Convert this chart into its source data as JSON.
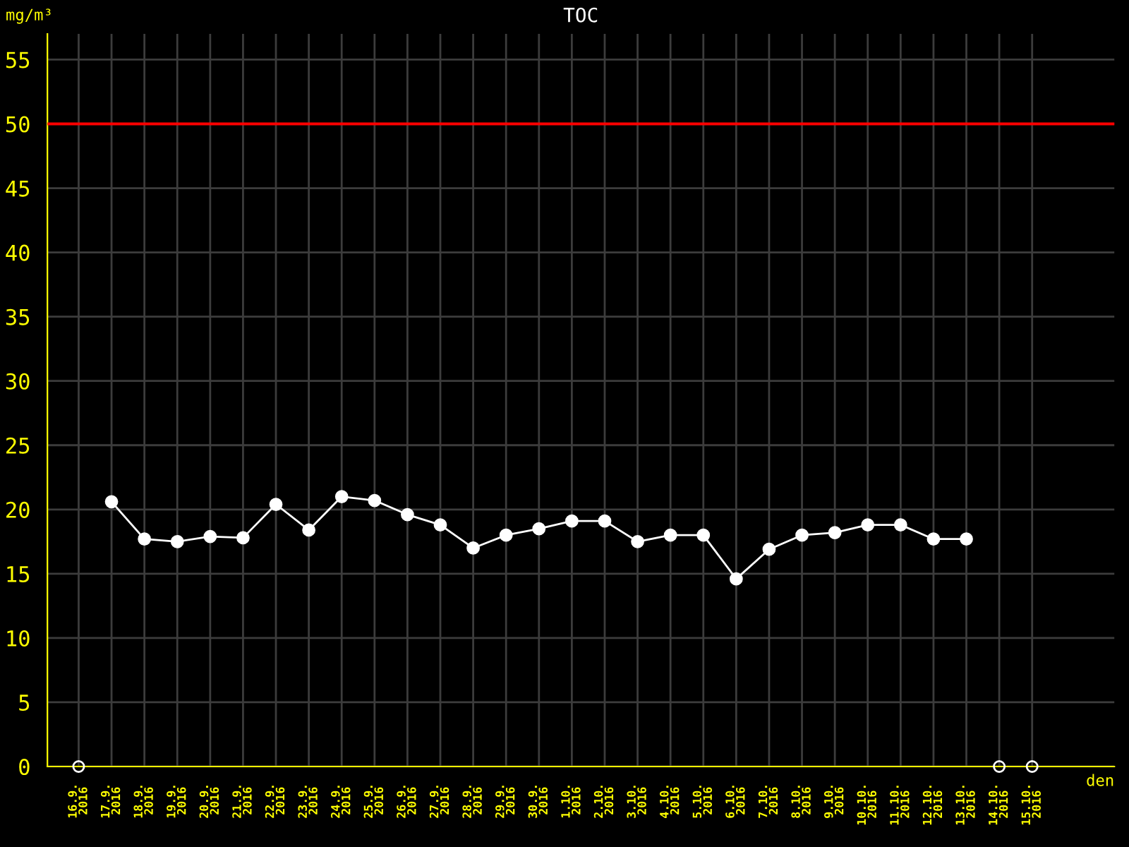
{
  "chart_data": {
    "type": "line",
    "title": "TOC",
    "xlabel": "den",
    "ylabel": "mg/m³",
    "categories": [
      "16.9.\n2016",
      "17.9.\n2016",
      "18.9.\n2016",
      "19.9.\n2016",
      "20.9.\n2016",
      "21.9.\n2016",
      "22.9.\n2016",
      "23.9.\n2016",
      "24.9.\n2016",
      "25.9.\n2016",
      "26.9.\n2016",
      "27.9.\n2016",
      "28.9.\n2016",
      "29.9.\n2016",
      "30.9.\n2016",
      "1.10.\n2016",
      "2.10.\n2016",
      "3.10.\n2016",
      "4.10.\n2016",
      "5.10.\n2016",
      "6.10.\n2016",
      "7.10.\n2016",
      "8.10.\n2016",
      "9.10.\n2016",
      "10.10.\n2016",
      "11.10.\n2016",
      "12.10.\n2016",
      "13.10.\n2016",
      "14.10.\n2016",
      "15.10.\n2016"
    ],
    "series": [
      {
        "color": "#ffffff",
        "marker": "circle",
        "values": [
          null,
          20.6,
          17.7,
          17.5,
          17.9,
          17.8,
          20.4,
          18.4,
          21.0,
          20.7,
          19.6,
          18.8,
          17.0,
          18.0,
          18.5,
          19.1,
          19.1,
          17.5,
          18.0,
          18.0,
          14.6,
          16.9,
          18.0,
          18.2,
          18.8,
          18.8,
          17.7,
          17.7,
          null,
          null
        ]
      },
      {
        "type": "scatter",
        "color": "#ffffff",
        "marker": "circle",
        "values": [
          0,
          null,
          null,
          null,
          null,
          null,
          null,
          null,
          null,
          null,
          null,
          null,
          null,
          null,
          null,
          null,
          null,
          null,
          null,
          null,
          null,
          null,
          null,
          null,
          null,
          null,
          null,
          null,
          0,
          0
        ]
      }
    ],
    "ylim": [
      0,
      57
    ],
    "yticks": [
      0,
      5,
      10,
      15,
      20,
      25,
      30,
      35,
      40,
      45,
      50,
      55
    ],
    "ref_lines": [
      {
        "axis": "y",
        "value": 50,
        "color": "#ff0000",
        "line_style": "solid"
      }
    ],
    "grid": true,
    "legend": false
  }
}
